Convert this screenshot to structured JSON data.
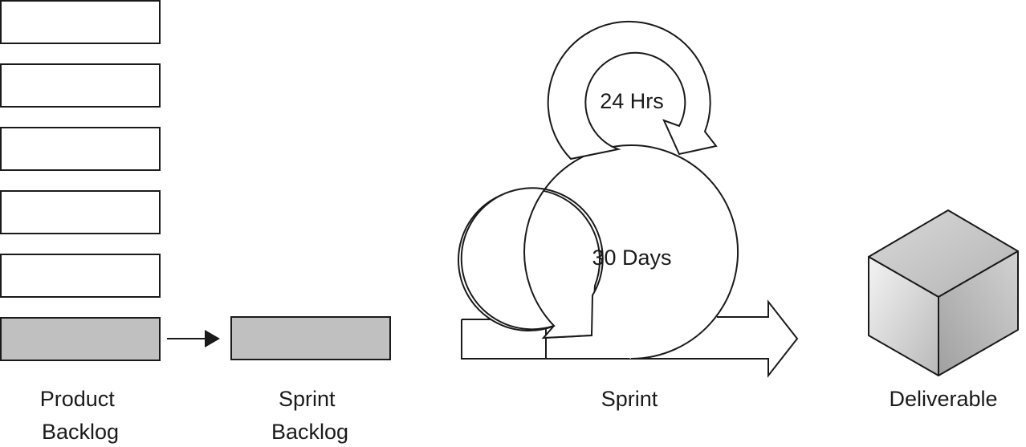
{
  "labels": {
    "product_backlog": [
      "Product",
      "Backlog"
    ],
    "sprint_backlog": [
      "Sprint",
      "Backlog"
    ],
    "sprint": "Sprint",
    "deliverable": "Deliverable",
    "daily_cycle": "24 Hrs",
    "sprint_cycle": "30 Days"
  },
  "product_backlog": {
    "item_count": 6,
    "highlighted_item": 6
  },
  "colors": {
    "stroke": "#1a1a1a",
    "highlight_fill": "#c0c0c1",
    "box_fill": "#ffffff"
  }
}
